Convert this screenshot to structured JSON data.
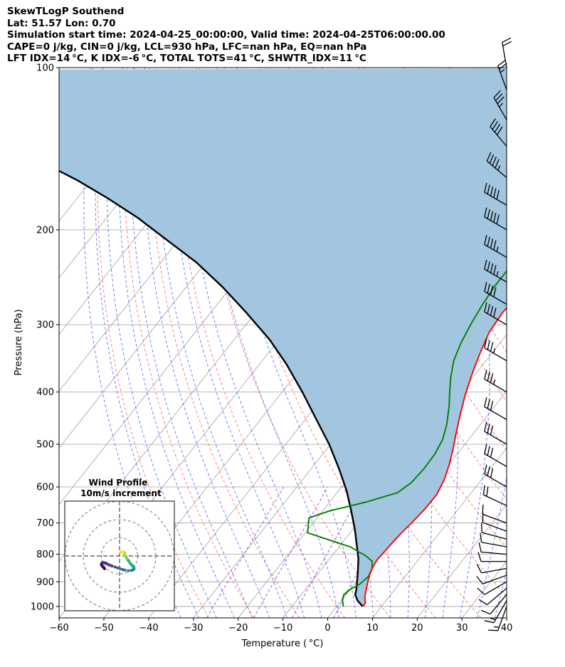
{
  "header": {
    "line1": "SkewTLogP Southend",
    "line2": "Lat: 51.57   Lon: 0.70",
    "line3": "Simulation start time: 2024-04-25_00:00:00, Valid time: 2024-04-25T06:00:00.00",
    "line4": "CAPE=0 j/kg, CIN=0 j/kg, LCL=930 hPa, LFC=nan hPa, EQ=nan hPa",
    "line5": "LFT IDX=14 °C, K IDX=-6 °C, TOTAL TOTS=41 °C, SHWTR_IDX=11 °C"
  },
  "colors": {
    "temperature": "#ff0000",
    "dewpoint": "#008000",
    "parcel": "#000000",
    "cin_shading": "#a3c6e0",
    "dry_adiabats": "#ff5a5a",
    "moist_adiabats": "#4a5cff",
    "mixing_ratio": "#9b4fd4",
    "isotherms": "#a0a0a0"
  },
  "chart_data": [
    {
      "type": "line",
      "subtype": "skew-t log-p",
      "xlabel": "Temperature ( °C)",
      "ylabel": "Pressure (hPa)",
      "xlim": [
        -60,
        40
      ],
      "ylim": [
        1050,
        100
      ],
      "y_scale": "log",
      "x_ticks": [
        -60,
        -50,
        -40,
        -30,
        -20,
        -10,
        0,
        10,
        20,
        30,
        40
      ],
      "y_ticks": [
        100,
        200,
        300,
        400,
        500,
        600,
        700,
        800,
        900,
        1000
      ],
      "grid": true,
      "series": [
        {
          "key": "temperature",
          "points": [
            [
              5.8,
              1000
            ],
            [
              5.8,
              985
            ],
            [
              4.6,
              960
            ],
            [
              3.6,
              930
            ],
            [
              2.6,
              900
            ],
            [
              1.8,
              875
            ],
            [
              1.2,
              850
            ],
            [
              0.8,
              820
            ],
            [
              1.0,
              790
            ],
            [
              1.2,
              760
            ],
            [
              1.5,
              730
            ],
            [
              2.0,
              700
            ],
            [
              2.5,
              660
            ],
            [
              2.6,
              620
            ],
            [
              1.6,
              580
            ],
            [
              0.1,
              545
            ],
            [
              -1.8,
              510
            ],
            [
              -4.0,
              475
            ],
            [
              -6.3,
              440
            ],
            [
              -8.6,
              405
            ],
            [
              -10.8,
              370
            ],
            [
              -12.6,
              340
            ],
            [
              -14.3,
              310
            ],
            [
              -14.8,
              285
            ],
            [
              -14.5,
              265
            ],
            [
              -13.4,
              250
            ],
            [
              -11.5,
              240
            ],
            [
              -6.6,
              216
            ],
            [
              -2.6,
              196
            ],
            [
              1.4,
              178
            ],
            [
              4.5,
              162
            ],
            [
              6.9,
              148
            ],
            [
              9.5,
              137
            ],
            [
              11.0,
              128
            ],
            [
              13.5,
              118
            ],
            [
              15.5,
              109
            ],
            [
              16.5,
              104
            ],
            [
              17.2,
              100
            ]
          ]
        },
        {
          "key": "dewpoint",
          "points": [
            [
              1.5,
              1000
            ],
            [
              0.0,
              970
            ],
            [
              -0.5,
              950
            ],
            [
              0.0,
              930
            ],
            [
              1.2,
              910
            ],
            [
              1.8,
              880
            ],
            [
              1.2,
              850
            ],
            [
              0.0,
              825
            ],
            [
              -2.5,
              805
            ],
            [
              -7.5,
              775
            ],
            [
              -11.5,
              760
            ],
            [
              -19.5,
              730
            ],
            [
              -21.8,
              685
            ],
            [
              -18.5,
              665
            ],
            [
              -11.8,
              640
            ],
            [
              -6.5,
              615
            ],
            [
              -5.2,
              590
            ],
            [
              -4.8,
              555
            ],
            [
              -5.0,
              520
            ],
            [
              -5.8,
              490
            ],
            [
              -7.5,
              460
            ],
            [
              -10.2,
              425
            ],
            [
              -12.6,
              400
            ],
            [
              -15.0,
              375
            ],
            [
              -17.2,
              350
            ],
            [
              -18.7,
              325
            ],
            [
              -19.8,
              300
            ],
            [
              -20.7,
              275
            ],
            [
              -21.2,
              255
            ],
            [
              -21.2,
              235
            ],
            [
              -20.9,
              215
            ],
            [
              -22.1,
              200
            ],
            [
              -26.2,
              185
            ],
            [
              -26.1,
              172
            ],
            [
              -24.6,
              158
            ],
            [
              -21.5,
              140
            ],
            [
              -16.5,
              123
            ],
            [
              -11.5,
              108
            ],
            [
              -9.5,
              100
            ]
          ]
        },
        {
          "key": "parcel",
          "points": [
            [
              5.8,
              1000
            ],
            [
              3.6,
              975
            ],
            [
              2.0,
              950
            ],
            [
              1.4,
              930
            ],
            [
              0.2,
              900
            ],
            [
              -1.5,
              860
            ],
            [
              -3.6,
              815
            ],
            [
              -6.3,
              770
            ],
            [
              -9.5,
              720
            ],
            [
              -13.6,
              665
            ],
            [
              -18.2,
              610
            ],
            [
              -23.8,
              555
            ],
            [
              -30.3,
              500
            ],
            [
              -37.5,
              450
            ],
            [
              -45.5,
              400
            ],
            [
              -54.0,
              355
            ],
            [
              -62.0,
              320
            ],
            [
              -72.0,
              285
            ],
            [
              -82.0,
              255
            ],
            [
              -92.0,
              230
            ],
            [
              -102.0,
              210
            ],
            [
              -113.0,
              190
            ],
            [
              -123.0,
              175
            ],
            [
              -133.0,
              162
            ],
            [
              -144.0,
              150
            ],
            [
              -155.0,
              139
            ],
            [
              -166.0,
              129
            ],
            [
              -178.0,
              120
            ],
            [
              -190.0,
              111
            ],
            [
              -197.0,
              106
            ],
            [
              -203.0,
              101
            ]
          ]
        }
      ],
      "wind_barbs": {
        "pressures": [
          1000,
          975,
          950,
          925,
          900,
          875,
          850,
          825,
          800,
          775,
          750,
          725,
          700,
          650,
          600,
          550,
          500,
          450,
          400,
          350,
          300,
          275,
          250,
          225,
          200,
          180,
          160,
          140,
          125,
          110,
          100
        ],
        "speeds_kt": [
          15,
          15,
          12,
          12,
          10,
          10,
          10,
          10,
          10,
          10,
          10,
          10,
          10,
          20,
          30,
          30,
          30,
          30,
          35,
          35,
          40,
          40,
          45,
          45,
          50,
          50,
          45,
          40,
          35,
          25,
          20
        ],
        "directions_deg": [
          200,
          210,
          220,
          230,
          240,
          250,
          260,
          270,
          275,
          280,
          285,
          290,
          290,
          295,
          300,
          300,
          300,
          300,
          300,
          300,
          300,
          300,
          300,
          300,
          300,
          300,
          310,
          320,
          330,
          340,
          350
        ]
      }
    },
    {
      "type": "scatter",
      "subtype": "hodograph",
      "title": "Wind Profile",
      "subtitle": "10m/s increment",
      "ring_spacing_ms": 10,
      "rings": 3,
      "points_uv_ms": [
        [
          -8.3,
          -7.0
        ],
        [
          -9.1,
          -6.1
        ],
        [
          -9.7,
          -5.4
        ],
        [
          -10.0,
          -4.6
        ],
        [
          -9.6,
          -3.9
        ],
        [
          -9.3,
          -3.6
        ],
        [
          -8.4,
          -3.7
        ],
        [
          -7.6,
          -4.0
        ],
        [
          -6.8,
          -4.4
        ],
        [
          -6.2,
          -4.7
        ],
        [
          -5.6,
          -5.0
        ],
        [
          -4.8,
          -5.3
        ],
        [
          -4.0,
          -5.6
        ],
        [
          -2.4,
          -6.1
        ],
        [
          -1.0,
          -6.6
        ],
        [
          0.3,
          -7.0
        ],
        [
          1.7,
          -7.5
        ],
        [
          3.0,
          -7.8
        ],
        [
          4.8,
          -8.1
        ],
        [
          6.4,
          -8.0
        ],
        [
          7.3,
          -7.7
        ],
        [
          7.7,
          -7.4
        ],
        [
          8.0,
          -7.0
        ],
        [
          7.9,
          -6.4
        ],
        [
          7.6,
          -5.9
        ],
        [
          7.1,
          -5.4
        ],
        [
          6.7,
          -4.9
        ],
        [
          6.1,
          -4.4
        ],
        [
          5.8,
          -3.9
        ],
        [
          5.4,
          -3.3
        ],
        [
          5.0,
          -2.7
        ],
        [
          4.5,
          -2.1
        ],
        [
          4.1,
          -1.5
        ],
        [
          3.8,
          -0.9
        ],
        [
          3.5,
          -0.3
        ],
        [
          3.2,
          0.1
        ],
        [
          3.0,
          0.4
        ],
        [
          2.8,
          1.0
        ],
        [
          2.7,
          1.5
        ],
        [
          2.8,
          1.9
        ],
        [
          2.2,
          2.1
        ],
        [
          1.6,
          2.1
        ],
        [
          1.0,
          1.9
        ],
        [
          0.6,
          2.0
        ],
        [
          0.9,
          2.3
        ]
      ]
    }
  ]
}
